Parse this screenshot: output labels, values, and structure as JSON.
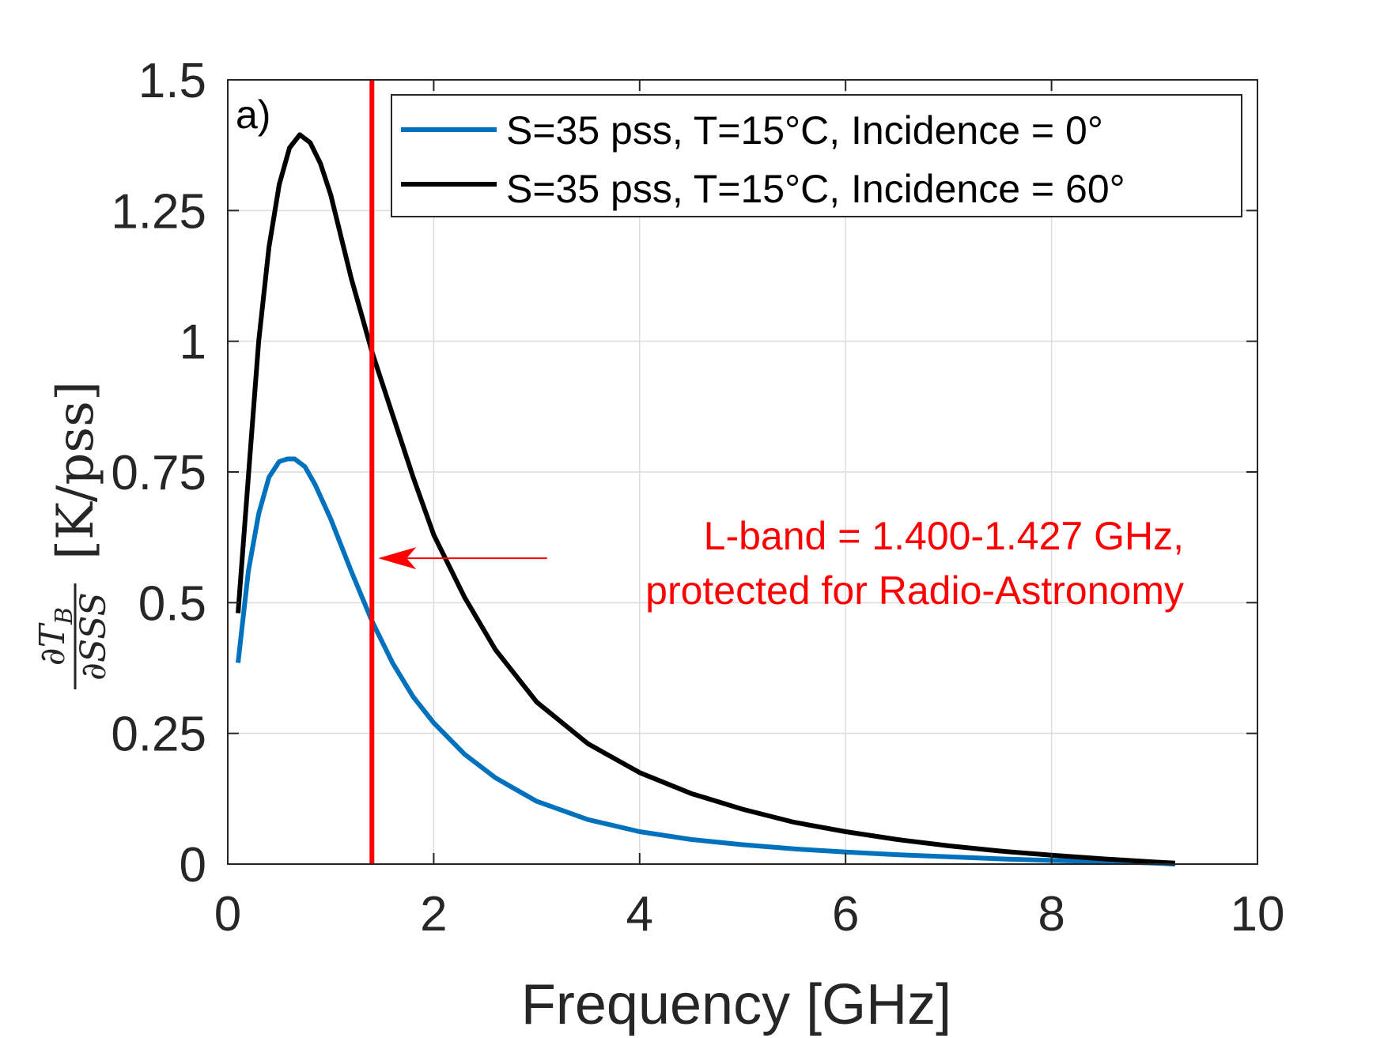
{
  "chart_data": {
    "type": "line",
    "panel_label": "a)",
    "xlabel": "Frequency [GHz]",
    "ylabel": {
      "numerator": "∂T",
      "numerator_sub": "B",
      "denominator": "∂SSS",
      "units": "[K/pss]"
    },
    "xlim": [
      0,
      10
    ],
    "ylim": [
      0,
      1.5
    ],
    "xticks": [
      0,
      2,
      4,
      6,
      8,
      10
    ],
    "xtick_labels": [
      "0",
      "2",
      "4",
      "6",
      "8",
      "10"
    ],
    "yticks": [
      0,
      0.25,
      0.5,
      0.75,
      1,
      1.25,
      1.5
    ],
    "ytick_labels": [
      "0",
      "0.25",
      "0.5",
      "0.75",
      "1",
      "1.25",
      "1.5"
    ],
    "grid": true,
    "legend_position": "top-right",
    "series": [
      {
        "name": "S=35 pss, T=15°C, Incidence = 0°",
        "color": "#0072bd",
        "x": [
          0.1,
          0.2,
          0.3,
          0.4,
          0.5,
          0.58,
          0.65,
          0.75,
          0.85,
          1.0,
          1.2,
          1.4,
          1.6,
          1.8,
          2.0,
          2.3,
          2.6,
          3.0,
          3.5,
          4.0,
          4.5,
          5.0,
          5.5,
          6.0,
          6.5,
          7.0,
          7.5,
          8.0,
          8.5,
          9.0,
          9.2
        ],
        "y": [
          0.385,
          0.56,
          0.67,
          0.74,
          0.77,
          0.775,
          0.775,
          0.76,
          0.725,
          0.66,
          0.56,
          0.465,
          0.385,
          0.32,
          0.27,
          0.21,
          0.165,
          0.12,
          0.085,
          0.062,
          0.047,
          0.037,
          0.029,
          0.023,
          0.018,
          0.014,
          0.01,
          0.007,
          0.005,
          0.002,
          0.0
        ]
      },
      {
        "name": "S=35 pss, T=15°C, Incidence = 60°",
        "color": "#000000",
        "x": [
          0.1,
          0.2,
          0.3,
          0.4,
          0.5,
          0.6,
          0.7,
          0.8,
          0.9,
          1.0,
          1.1,
          1.2,
          1.3,
          1.4,
          1.6,
          1.8,
          2.0,
          2.3,
          2.6,
          3.0,
          3.5,
          4.0,
          4.5,
          5.0,
          5.5,
          6.0,
          6.5,
          7.0,
          7.5,
          8.0,
          8.5,
          9.0,
          9.2
        ],
        "y": [
          0.48,
          0.74,
          1.0,
          1.18,
          1.3,
          1.37,
          1.395,
          1.38,
          1.34,
          1.28,
          1.2,
          1.12,
          1.05,
          0.98,
          0.86,
          0.74,
          0.63,
          0.51,
          0.41,
          0.31,
          0.23,
          0.175,
          0.135,
          0.105,
          0.08,
          0.062,
          0.047,
          0.035,
          0.025,
          0.017,
          0.01,
          0.004,
          0.002
        ]
      }
    ],
    "vertical_line": {
      "x": 1.4,
      "color": "#ff0000"
    },
    "annotation": {
      "lines": [
        "L-band = 1.400-1.427 GHz,",
        "protected for Radio-Astronomy"
      ],
      "color": "#ff0000",
      "arrow_from": {
        "x": 3.1,
        "y": 0.585
      },
      "arrow_to": {
        "x": 1.4,
        "y": 0.585
      }
    }
  }
}
